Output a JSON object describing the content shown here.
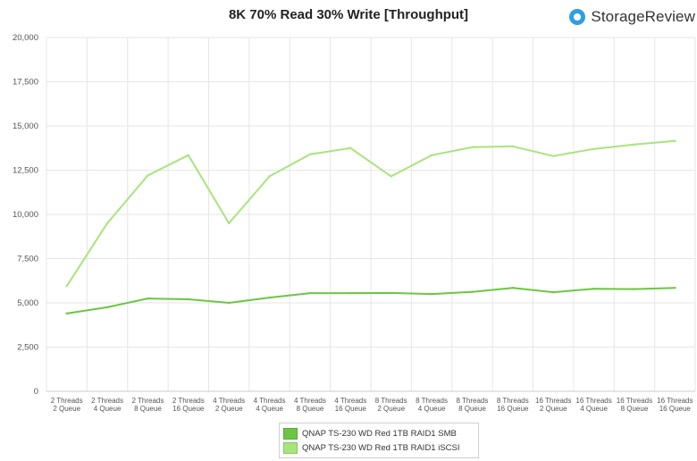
{
  "chart_data": {
    "type": "line",
    "title": "8K 70% Read 30% Write [Throughput]",
    "xlabel": "",
    "ylabel": "",
    "ylim": [
      0,
      20000
    ],
    "yticks": [
      0,
      2500,
      5000,
      7500,
      10000,
      12500,
      15000,
      17500,
      20000
    ],
    "ytick_labels": [
      "0",
      "2,500",
      "5,000",
      "7,500",
      "10,000",
      "12,500",
      "15,000",
      "17,500",
      "20,000"
    ],
    "categories": [
      [
        "2 Threads",
        "2 Queue"
      ],
      [
        "2 Threads",
        "4 Queue"
      ],
      [
        "2 Threads",
        "8 Queue"
      ],
      [
        "2 Threads",
        "16 Queue"
      ],
      [
        "4 Threads",
        "2 Queue"
      ],
      [
        "4 Threads",
        "4 Queue"
      ],
      [
        "4 Threads",
        "8 Queue"
      ],
      [
        "4 Threads",
        "16 Queue"
      ],
      [
        "8 Threads",
        "2 Queue"
      ],
      [
        "8 Threads",
        "4 Queue"
      ],
      [
        "8 Threads",
        "8 Queue"
      ],
      [
        "8 Threads",
        "16 Queue"
      ],
      [
        "16 Threads",
        "2 Queue"
      ],
      [
        "16 Threads",
        "4 Queue"
      ],
      [
        "16 Threads",
        "8 Queue"
      ],
      [
        "16 Threads",
        "16 Queue"
      ]
    ],
    "series": [
      {
        "name": "QNAP TS-230 WD Red 1TB RAID1 SMB",
        "color": "#6cc644",
        "values": [
          4400,
          4750,
          5250,
          5200,
          5000,
          5300,
          5550,
          5550,
          5560,
          5500,
          5620,
          5850,
          5600,
          5800,
          5780,
          5850
        ]
      },
      {
        "name": "QNAP TS-230 WD Red 1TB RAID1 iSCSI",
        "color": "#a7e57b",
        "values": [
          5950,
          9500,
          12200,
          13350,
          9500,
          12150,
          13400,
          13750,
          12150,
          13350,
          13800,
          13850,
          13300,
          13700,
          13950,
          14150
        ]
      }
    ],
    "grid": true,
    "legend_position": "bottom-center"
  },
  "branding": {
    "logo_text": "StorageReview"
  }
}
